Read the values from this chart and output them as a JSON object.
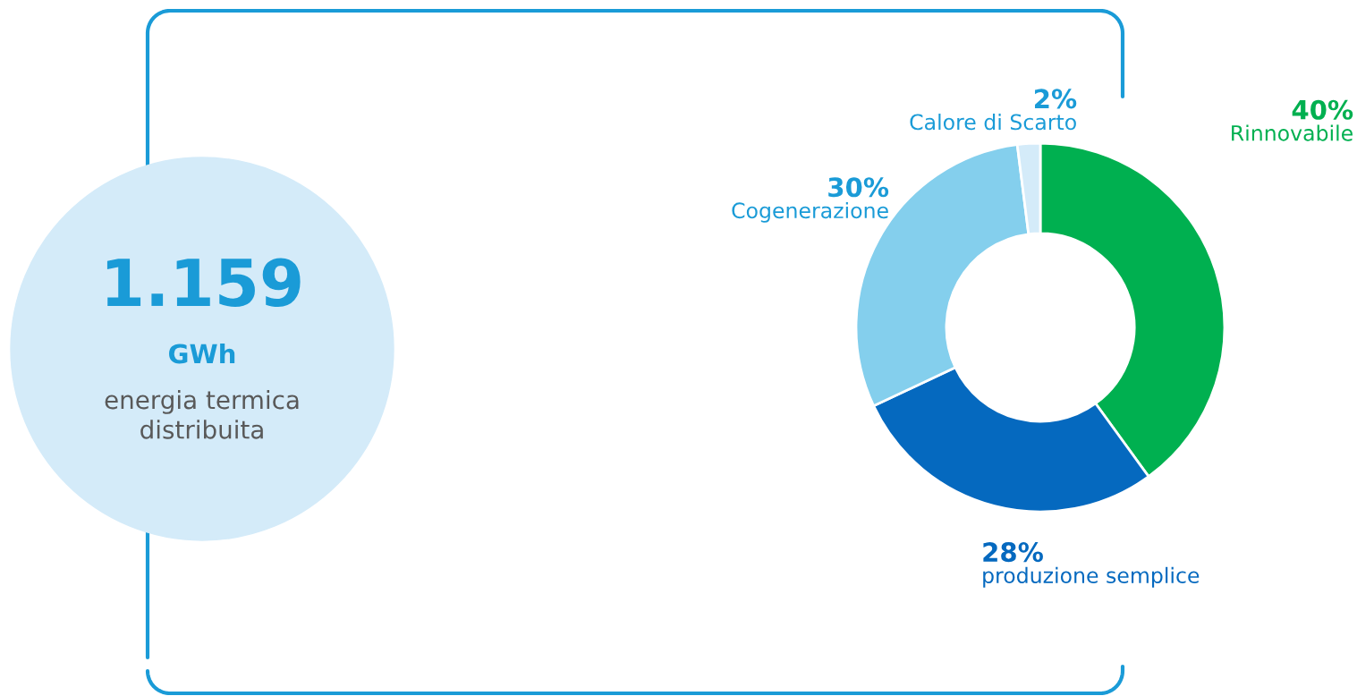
{
  "chart_data": [
    {
      "type": "other",
      "title": "1.159",
      "subtitle": "GWh",
      "annotations": [
        "energia termica\ndistribuita"
      ]
    },
    {
      "type": "donut",
      "categories": [
        "Rinnovabile",
        "produzione semplice",
        "Cogenerazione",
        "Calore di Scarto"
      ],
      "values": [
        40,
        28,
        30,
        2
      ],
      "colors": [
        "#00b050",
        "#0569bf",
        "#84cfed",
        "#d4ebf9"
      ],
      "value_labels": [
        "40%",
        "28%",
        "30%",
        "2%"
      ]
    }
  ]
}
